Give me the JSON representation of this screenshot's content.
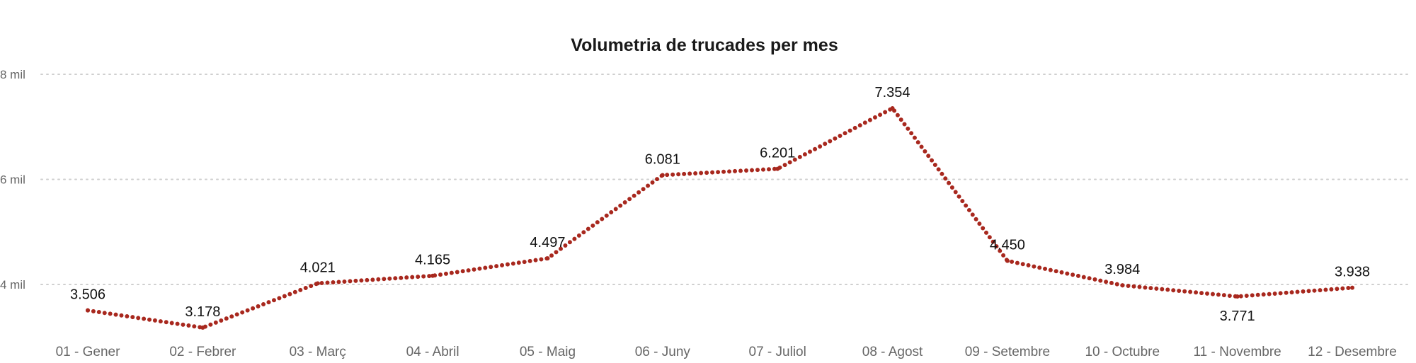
{
  "chart_data": {
    "type": "line",
    "title": "Volumetria de trucades per mes",
    "xlabel": "",
    "ylabel": "",
    "categories": [
      "01 - Gener",
      "02 - Febrer",
      "03 - Març",
      "04 - Abril",
      "05 - Maig",
      "06 - Juny",
      "07 - Juliol",
      "08 - Agost",
      "09 - Setembre",
      "10 - Octubre",
      "11 - Novembre",
      "12 - Desembre"
    ],
    "values": [
      3506,
      3178,
      4021,
      4165,
      4497,
      6081,
      6201,
      7354,
      4450,
      3984,
      3771,
      3938
    ],
    "data_labels": [
      "3.506",
      "3.178",
      "4.021",
      "4.165",
      "4.497",
      "6.081",
      "6.201",
      "7.354",
      "4.450",
      "3.984",
      "3.771",
      "3.938"
    ],
    "label_below": [
      false,
      false,
      false,
      false,
      false,
      false,
      false,
      false,
      false,
      false,
      true,
      false
    ],
    "yticks": [
      {
        "value": 4000,
        "label": "4 mil"
      },
      {
        "value": 6000,
        "label": "6 mil"
      },
      {
        "value": 8000,
        "label": "8 mil"
      }
    ],
    "ylim": [
      3000,
      8000
    ],
    "grid": true,
    "grid_style": "dotted",
    "line_style": "dotted",
    "line_color": "#a8281e",
    "legend": "none"
  }
}
